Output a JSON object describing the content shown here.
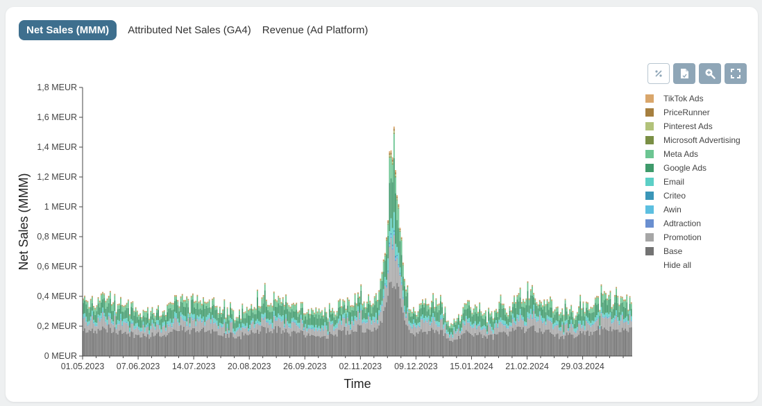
{
  "tabs": [
    {
      "label": "Net Sales (MMM)",
      "active": true
    },
    {
      "label": "Attributed Net Sales (GA4)",
      "active": false
    },
    {
      "label": "Revenue (Ad Platform)",
      "active": false
    }
  ],
  "toolbar": {
    "icons": [
      "percent-icon",
      "export-file-icon",
      "zoom-in-icon",
      "fullscreen-icon"
    ]
  },
  "legend": {
    "hide_all_label": "Hide all"
  },
  "chart_data": {
    "type": "bar",
    "stacked": true,
    "xlabel": "Time",
    "ylabel": "Net Sales (MMM)",
    "ylim": [
      0,
      1.8
    ],
    "y_unit": "MEUR",
    "ytick_labels": [
      "0 MEUR",
      "0,2 MEUR",
      "0,4 MEUR",
      "0,6 MEUR",
      "0,8 MEUR",
      "1 MEUR",
      "1,2 MEUR",
      "1,4 MEUR",
      "1,6 MEUR",
      "1,8 MEUR"
    ],
    "ytick_values": [
      0,
      0.2,
      0.4,
      0.6,
      0.8,
      1.0,
      1.2,
      1.4,
      1.6,
      1.8
    ],
    "x_start": "01.05.2023",
    "x_end": "30.04.2024",
    "xtick_labels": [
      "01.05.2023",
      "07.06.2023",
      "14.07.2023",
      "20.08.2023",
      "26.09.2023",
      "02.11.2023",
      "09.12.2023",
      "15.01.2024",
      "21.02.2024",
      "29.03.2024"
    ],
    "series": [
      {
        "name": "TikTok Ads",
        "color": "#d9a66b"
      },
      {
        "name": "PriceRunner",
        "color": "#a67f3f"
      },
      {
        "name": "Pinterest Ads",
        "color": "#b2c27a"
      },
      {
        "name": "Microsoft Advertising",
        "color": "#7a8f45"
      },
      {
        "name": "Meta Ads",
        "color": "#6cc592"
      },
      {
        "name": "Google Ads",
        "color": "#3f9a6b"
      },
      {
        "name": "Email",
        "color": "#5ccfc6"
      },
      {
        "name": "Criteo",
        "color": "#3a96b8"
      },
      {
        "name": "Awin",
        "color": "#5cbfe0"
      },
      {
        "name": "Adtraction",
        "color": "#6a8fd0"
      },
      {
        "name": "Promotion",
        "color": "#a6a6a6"
      },
      {
        "name": "Base",
        "color": "#737373"
      }
    ],
    "daily_shape": {
      "base_mean": 0.15,
      "promotion_mean": 0.05,
      "email_mean": 0.02,
      "google_ads_mean": 0.06,
      "meta_ads_mean": 0.03,
      "peak_date": "24.11.2023",
      "peak_total": 1.49,
      "trough_date": "01.01.2024",
      "trough_total": 0.12
    }
  }
}
